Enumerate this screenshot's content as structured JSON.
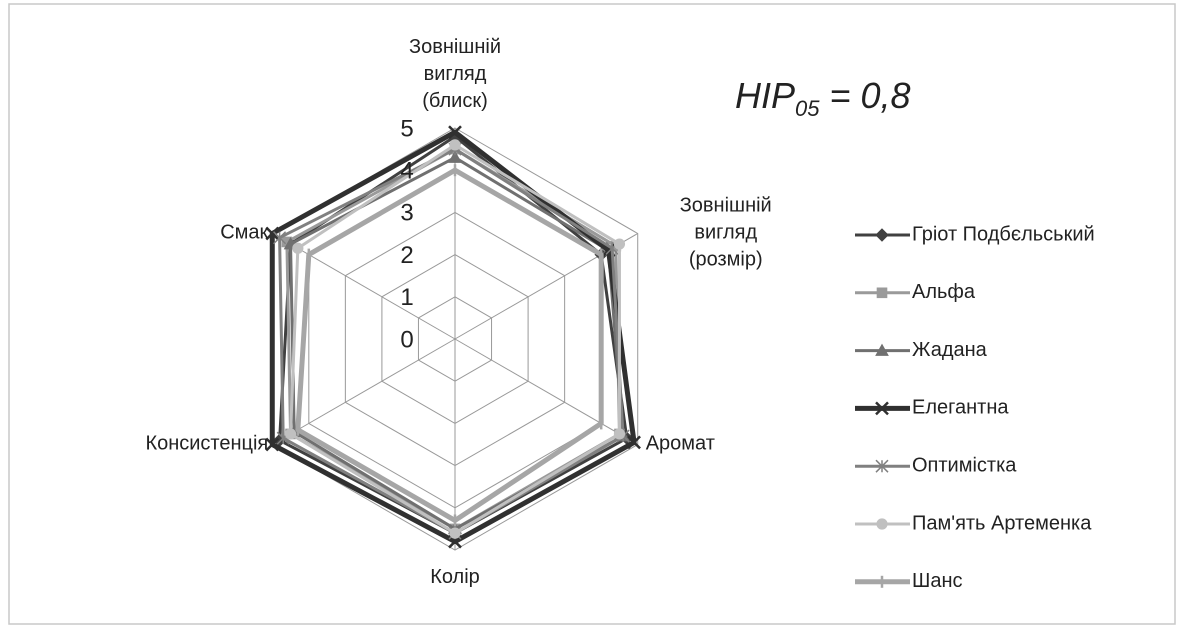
{
  "chart_data": {
    "type": "radar",
    "annotation": {
      "main": "HIP",
      "sub": "05",
      "rest": " = 0,8"
    },
    "categories": [
      "Зовнішній\nвигляд\n(блиск)",
      "Зовнішній\nвигляд\n(розмір)",
      "Аромат",
      "Колір",
      "Консистенція",
      "Смак"
    ],
    "rlim": [
      0,
      5
    ],
    "rticks": [
      0,
      1,
      2,
      3,
      4,
      5
    ],
    "grid": true,
    "legend": "right",
    "series": [
      {
        "name": "Гріот Подбєльський",
        "color": "#404040",
        "marker": "diamond",
        "width": 3,
        "values": [
          4.8,
          4.0,
          4.7,
          4.6,
          4.8,
          4.5
        ]
      },
      {
        "name": "Альфа",
        "color": "#9a9a9a",
        "marker": "square",
        "width": 3,
        "values": [
          4.5,
          4.4,
          4.5,
          4.5,
          4.5,
          4.6
        ]
      },
      {
        "name": "Жадана",
        "color": "#707070",
        "marker": "triangle",
        "width": 3,
        "values": [
          4.3,
          4.2,
          4.6,
          4.5,
          4.4,
          4.5
        ]
      },
      {
        "name": "Елегантна",
        "color": "#303030",
        "marker": "cross",
        "width": 5,
        "values": [
          4.9,
          4.2,
          4.9,
          4.8,
          5.0,
          5.0
        ]
      },
      {
        "name": "Оптимістка",
        "color": "#808080",
        "marker": "star",
        "width": 3,
        "values": [
          4.5,
          4.3,
          4.6,
          4.6,
          4.7,
          4.8
        ]
      },
      {
        "name": "Пам'ять Артеменка",
        "color": "#c0c0c0",
        "marker": "circle",
        "width": 3,
        "values": [
          4.6,
          4.5,
          4.5,
          4.6,
          4.5,
          4.3
        ]
      },
      {
        "name": "Шанс",
        "color": "#a6a6a6",
        "marker": "dash",
        "width": 5,
        "values": [
          4.0,
          4.0,
          4.0,
          4.3,
          4.3,
          4.0
        ]
      }
    ]
  }
}
